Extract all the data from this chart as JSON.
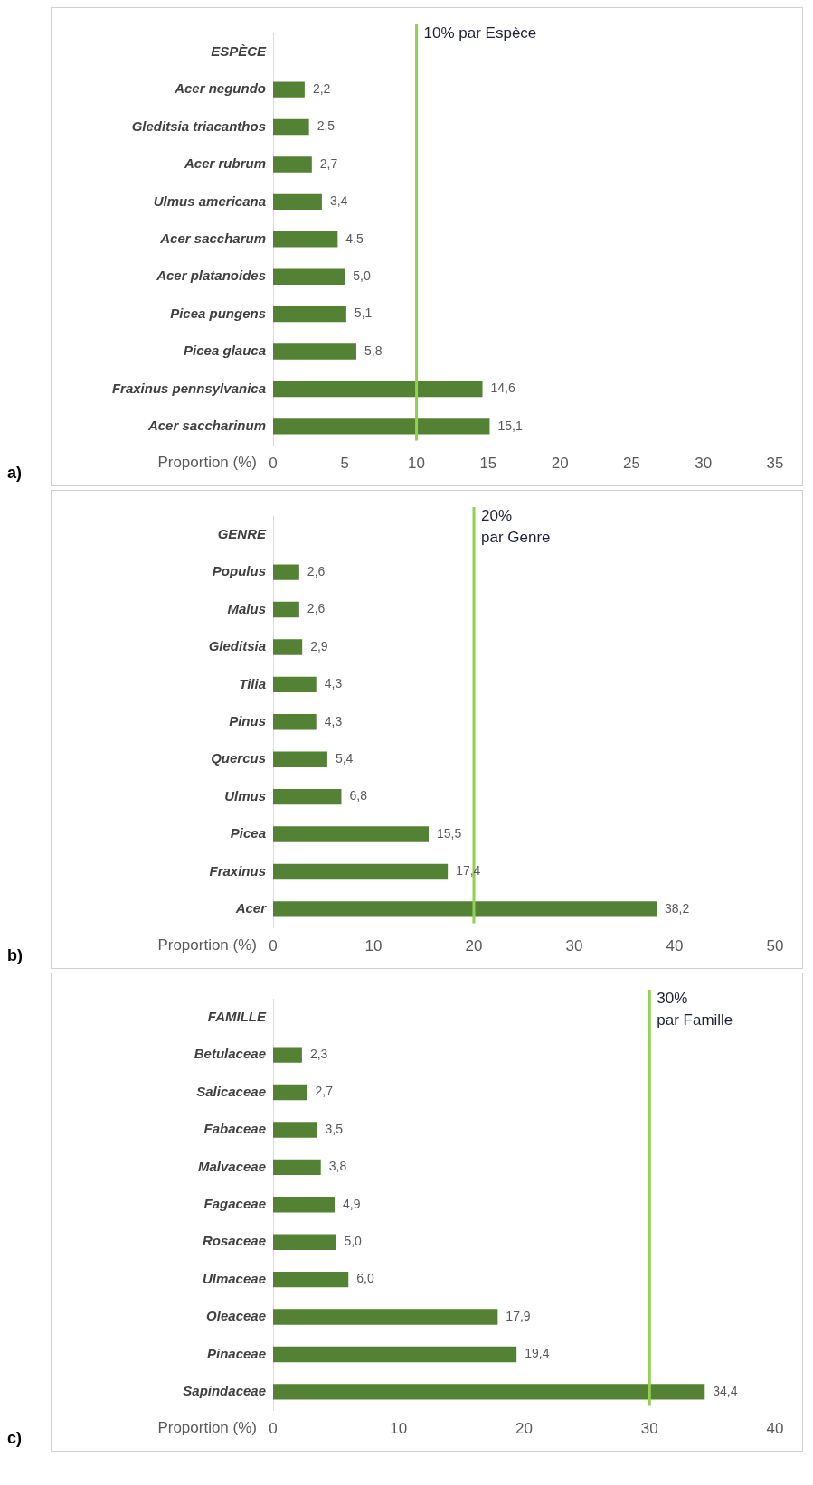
{
  "chart_data": [
    {
      "type": "bar",
      "orientation": "horizontal",
      "categories": [
        "ESPÈCE",
        "Acer negundo",
        "Gleditsia triacanthos",
        "Acer rubrum",
        "Ulmus americana",
        "Acer saccharum",
        "Acer platanoides",
        "Picea pungens",
        "Picea glauca",
        "Fraxinus pennsylvanica",
        "Acer saccharinum"
      ],
      "values": [
        null,
        2.2,
        2.5,
        2.7,
        3.4,
        4.5,
        5.0,
        5.1,
        5.8,
        14.6,
        15.1
      ],
      "value_labels": [
        null,
        "2,2",
        "2,5",
        "2,7",
        "3,4",
        "4,5",
        "5,0",
        "5,1",
        "5,8",
        "14,6",
        "15,1"
      ],
      "color": "#548235",
      "xlabel": "Proportion (%)",
      "xlim": [
        0,
        35
      ],
      "xticks": [
        0,
        5,
        10,
        15,
        20,
        25,
        30,
        35
      ],
      "ref_lines": [
        {
          "axis": "x",
          "value": 10,
          "label": "10% par Espèce",
          "color": "#92d050"
        }
      ],
      "annotations": [
        "a)"
      ]
    },
    {
      "type": "bar",
      "orientation": "horizontal",
      "categories": [
        "GENRE",
        "Populus",
        "Malus",
        "Gleditsia",
        "Tilia",
        "Pinus",
        "Quercus",
        "Ulmus",
        "Picea",
        "Fraxinus",
        "Acer"
      ],
      "values": [
        null,
        2.6,
        2.6,
        2.9,
        4.3,
        4.3,
        5.4,
        6.8,
        15.5,
        17.4,
        38.2
      ],
      "value_labels": [
        null,
        "2,6",
        "2,6",
        "2,9",
        "4,3",
        "4,3",
        "5,4",
        "6,8",
        "15,5",
        "17,4",
        "38,2"
      ],
      "color": "#548235",
      "xlabel": "Proportion (%)",
      "xlim": [
        0,
        50
      ],
      "xticks": [
        0,
        10,
        20,
        30,
        40,
        50
      ],
      "ref_lines": [
        {
          "axis": "x",
          "value": 20,
          "label": "20%\npar Genre",
          "color": "#92d050"
        }
      ],
      "annotations": [
        "b)"
      ]
    },
    {
      "type": "bar",
      "orientation": "horizontal",
      "categories": [
        "FAMILLE",
        "Betulaceae",
        "Salicaceae",
        "Fabaceae",
        "Malvaceae",
        "Fagaceae",
        "Rosaceae",
        "Ulmaceae",
        "Oleaceae",
        "Pinaceae",
        "Sapindaceae"
      ],
      "values": [
        null,
        2.3,
        2.7,
        3.5,
        3.8,
        4.9,
        5.0,
        6.0,
        17.9,
        19.4,
        34.4
      ],
      "value_labels": [
        null,
        "2,3",
        "2,7",
        "3,5",
        "3,8",
        "4,9",
        "5,0",
        "6,0",
        "17,9",
        "19,4",
        "34,4"
      ],
      "color": "#548235",
      "xlabel": "Proportion (%)",
      "xlim": [
        0,
        40
      ],
      "xticks": [
        0,
        10,
        20,
        30,
        40
      ],
      "ref_lines": [
        {
          "axis": "x",
          "value": 30,
          "label": "30%\npar Famille",
          "color": "#92d050"
        }
      ],
      "annotations": [
        "c)"
      ]
    }
  ]
}
